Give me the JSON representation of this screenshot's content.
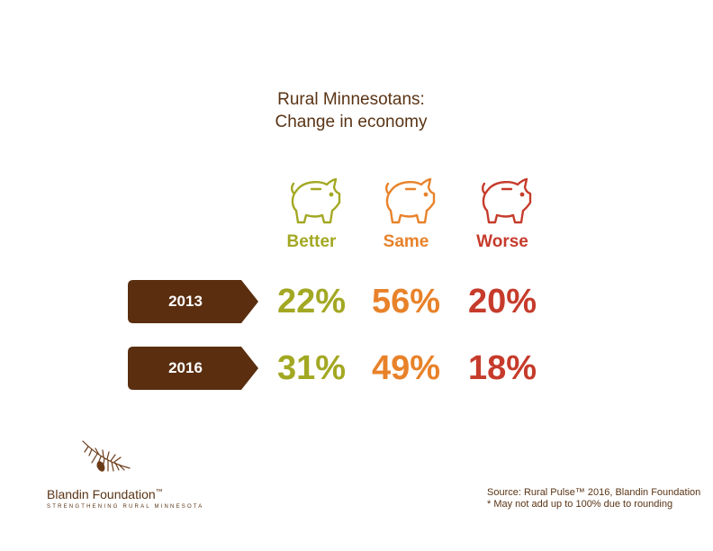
{
  "chart_data": {
    "type": "table",
    "title": [
      "Rural Minnesotans:",
      "Change in economy"
    ],
    "categories": [
      "Better",
      "Same",
      "Worse"
    ],
    "category_colors": [
      "#a3a823",
      "#e8822a",
      "#c63b2b"
    ],
    "rows": [
      {
        "year": "2013",
        "values": [
          22,
          56,
          20
        ],
        "labels": [
          "22%",
          "56%",
          "20%"
        ]
      },
      {
        "year": "2016",
        "values": [
          31,
          49,
          18
        ],
        "labels": [
          "31%",
          "49%",
          "18%"
        ]
      }
    ],
    "tag_color": "#5a2e0f",
    "icon": "piggy-bank-icon"
  },
  "footer": {
    "org_name": "Blandin Foundation",
    "trademark": "™",
    "tagline": "STRENGTHENING RURAL MINNESOTA",
    "source_line1": "Source: Rural Pulse™ 2016, Blandin Foundation",
    "source_line2": "* May not add up to 100% due to rounding"
  }
}
